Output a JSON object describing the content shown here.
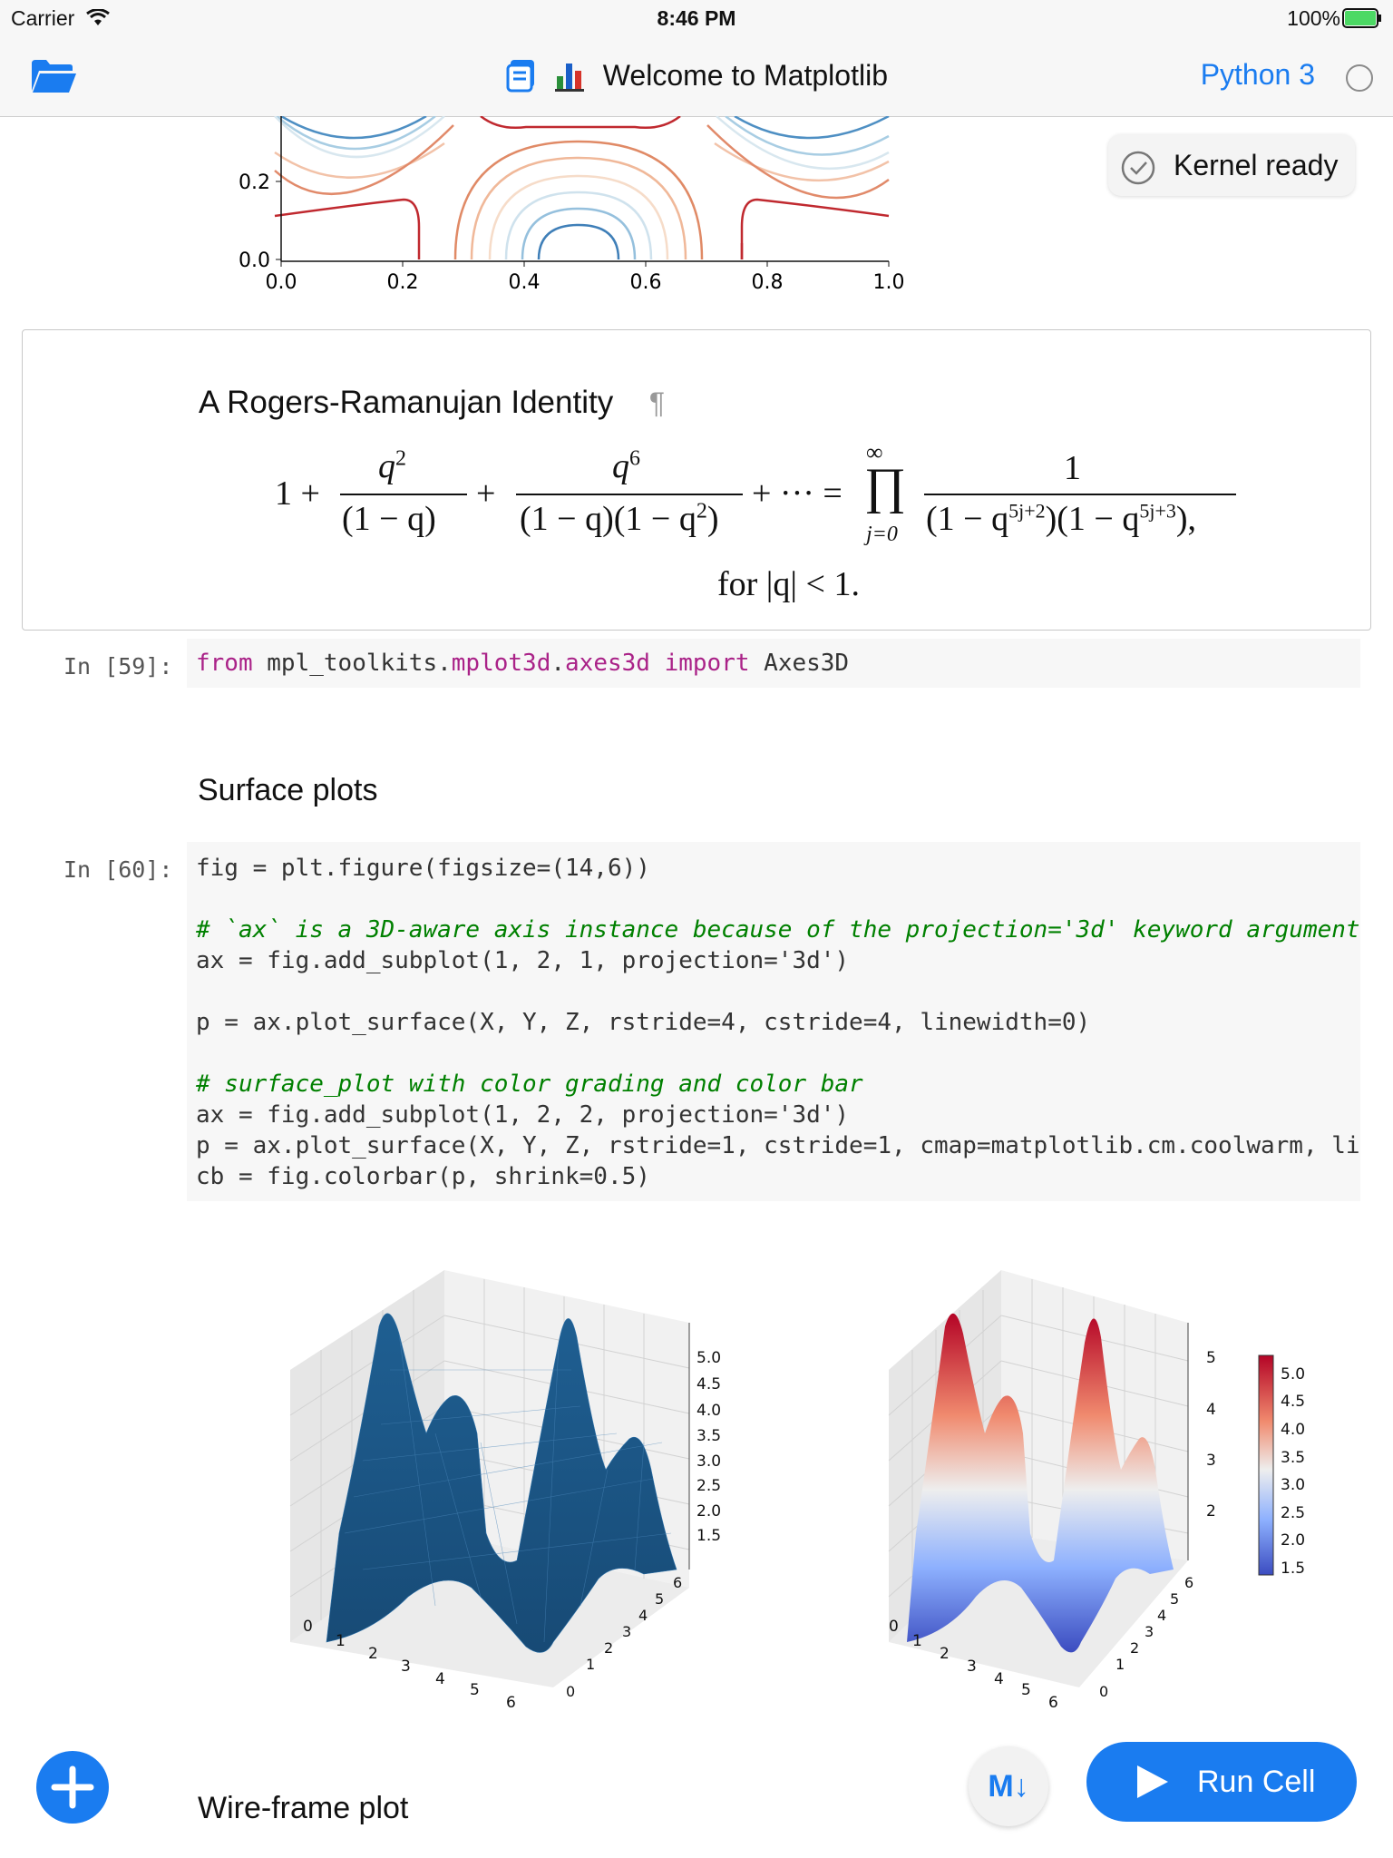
{
  "status_bar": {
    "carrier": "Carrier",
    "time": "8:46 PM",
    "battery": "100%",
    "battery_color": "#4cd964"
  },
  "nav": {
    "title": "Welcome to Matplotlib",
    "kernel_name": "Python 3",
    "left_icon": "folder-open-icon",
    "title_icons": [
      "notebook-icon",
      "bar-chart-icon"
    ],
    "accent_color": "#1a7cf0"
  },
  "toast": {
    "text": "Kernel ready",
    "icon": "check-circle-icon"
  },
  "top_plot": {
    "y_ticks": [
      "0.2",
      "0.0"
    ],
    "x_ticks": [
      "0.0",
      "0.2",
      "0.4",
      "0.6",
      "0.8",
      "1.0"
    ]
  },
  "markdown_cell": {
    "heading": "A Rogers-Ramanujan Identity",
    "pilcrow": "¶",
    "formula": {
      "lhs_one": "1 +",
      "num1": "q",
      "num1_exp": "2",
      "den1": "(1 − q)",
      "plus1": "+",
      "num2": "q",
      "num2_exp": "6",
      "den2": "(1 − q)(1 − q",
      "den2_exp": "2",
      "den2_close": ")",
      "ellipsis": "+ ··· =",
      "prod_upper": "∞",
      "prod_symbol": "∏",
      "prod_lower": "j=0",
      "rhs_num": "1",
      "rhs_den": "(1 − q",
      "rhs_exp1": "5j+2",
      "rhs_mid": ")(1 − q",
      "rhs_exp2": "5j+3",
      "rhs_close": "),",
      "condition": "for |q| < 1."
    }
  },
  "cell_59": {
    "prompt": "In [59]:",
    "tokens": [
      "from",
      " mpl_toolkits",
      ".",
      "mplot3d",
      ".",
      "axes3d",
      " ",
      "import",
      " Axes3D"
    ]
  },
  "surface_heading": "Surface plots",
  "cell_60": {
    "prompt": "In [60]:",
    "lines": [
      "fig = plt.figure(figsize=(14,6))",
      "",
      "# `ax` is a 3D-aware axis instance because of the projection='3d' keyword argument",
      "ax = fig.add_subplot(1, 2, 1, projection='3d')",
      "",
      "p = ax.plot_surface(X, Y, Z, rstride=4, cstride=4, linewidth=0)",
      "",
      "# surface_plot with color grading and color bar",
      "ax = fig.add_subplot(1, 2, 2, projection='3d')",
      "p = ax.plot_surface(X, Y, Z, rstride=1, cstride=1, cmap=matplotlib.cm.coolwarm, li",
      "cb = fig.colorbar(p, shrink=0.5)"
    ]
  },
  "plot_left": {
    "z_ticks": [
      "5.0",
      "4.5",
      "4.0",
      "3.5",
      "3.0",
      "2.5",
      "2.0",
      "1.5"
    ],
    "x_ticks": [
      "0",
      "1",
      "2",
      "3",
      "4",
      "5",
      "6"
    ],
    "y_ticks": [
      "0",
      "1",
      "2",
      "3",
      "4",
      "5",
      "6"
    ],
    "surface_color": "#1f5f92"
  },
  "plot_right": {
    "z_ticks": [
      "5",
      "4",
      "3",
      "2"
    ],
    "x_ticks": [
      "0",
      "1",
      "2",
      "3",
      "4",
      "5",
      "6"
    ],
    "y_ticks": [
      "0",
      "1",
      "2",
      "3",
      "4",
      "5",
      "6"
    ],
    "colorbar_ticks": [
      "5.0",
      "4.5",
      "4.0",
      "3.5",
      "3.0",
      "2.5",
      "2.0",
      "1.5"
    ],
    "colormap": "coolwarm"
  },
  "wireframe_heading": "Wire-frame plot",
  "buttons": {
    "add": "+",
    "markdown": "M↓",
    "run": "Run Cell"
  }
}
